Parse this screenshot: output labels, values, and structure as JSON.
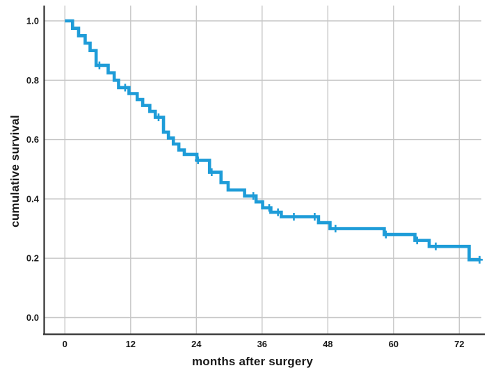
{
  "chart_data": {
    "type": "line",
    "subtype": "kaplan-meier-step-curve",
    "title": "",
    "xlabel": "months after surgery",
    "ylabel": "cumulative survival",
    "x_ticks": [
      "0",
      "12",
      "24",
      "36",
      "48",
      "60",
      "72"
    ],
    "x_tick_values": [
      0,
      12,
      24,
      36,
      48,
      60,
      72
    ],
    "y_ticks": [
      "0.0",
      "0.2",
      "0.4",
      "0.6",
      "0.8",
      "1.0"
    ],
    "y_tick_values": [
      0.0,
      0.2,
      0.4,
      0.6,
      0.8,
      1.0
    ],
    "xlim": [
      -4,
      78
    ],
    "ylim": [
      -0.06,
      1.06
    ],
    "grid": true,
    "legend_position": "none",
    "line_color": "#1e9cd8",
    "grid_color": "#c6c6c6",
    "axis_color": "#2f2f2f",
    "text_color": "#1a1a1a",
    "survival_start": {
      "t": 0,
      "s": 1.0
    },
    "steps": [
      [
        1.4,
        0.975
      ],
      [
        2.5,
        0.95
      ],
      [
        3.7,
        0.925
      ],
      [
        4.6,
        0.9
      ],
      [
        5.7,
        0.85
      ],
      [
        7.9,
        0.825
      ],
      [
        9.0,
        0.8
      ],
      [
        9.8,
        0.775
      ],
      [
        11.7,
        0.755
      ],
      [
        13.2,
        0.735
      ],
      [
        14.2,
        0.715
      ],
      [
        15.5,
        0.695
      ],
      [
        16.5,
        0.675
      ],
      [
        18.0,
        0.625
      ],
      [
        18.9,
        0.605
      ],
      [
        19.8,
        0.585
      ],
      [
        20.8,
        0.565
      ],
      [
        21.8,
        0.55
      ],
      [
        24.1,
        0.53
      ],
      [
        26.4,
        0.49
      ],
      [
        28.5,
        0.455
      ],
      [
        29.8,
        0.43
      ],
      [
        32.8,
        0.41
      ],
      [
        34.9,
        0.39
      ],
      [
        36.1,
        0.37
      ],
      [
        37.6,
        0.355
      ],
      [
        39.5,
        0.34
      ],
      [
        46.3,
        0.32
      ],
      [
        48.4,
        0.3
      ],
      [
        58.3,
        0.28
      ],
      [
        63.9,
        0.26
      ],
      [
        66.5,
        0.24
      ],
      [
        73.8,
        0.195
      ]
    ],
    "curve_end_t": 75.7,
    "censored": [
      [
        6.3,
        0.85
      ],
      [
        11.0,
        0.775
      ],
      [
        17.1,
        0.675
      ],
      [
        24.3,
        0.53
      ],
      [
        26.8,
        0.49
      ],
      [
        34.4,
        0.41
      ],
      [
        37.3,
        0.37
      ],
      [
        38.9,
        0.355
      ],
      [
        41.8,
        0.34
      ],
      [
        45.6,
        0.34
      ],
      [
        49.4,
        0.3
      ],
      [
        58.6,
        0.28
      ],
      [
        64.3,
        0.26
      ],
      [
        67.7,
        0.24
      ],
      [
        75.7,
        0.195
      ]
    ]
  }
}
